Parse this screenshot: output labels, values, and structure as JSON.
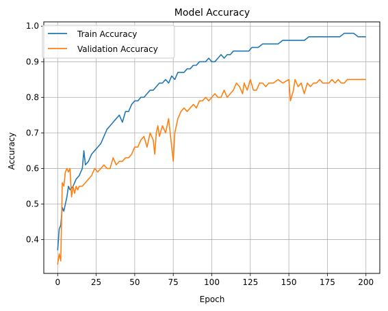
{
  "chart_data": {
    "type": "line",
    "title": "Model Accuracy",
    "xlabel": "Epoch",
    "ylabel": "Accuracy",
    "xlim": [
      -9,
      209
    ],
    "ylim": [
      0.305,
      1.012
    ],
    "xticks": [
      0,
      25,
      50,
      75,
      100,
      125,
      150,
      175,
      200
    ],
    "yticks": [
      0.4,
      0.5,
      0.6,
      0.7,
      0.8,
      0.9,
      1.0
    ],
    "ytick_labels": [
      "0.4",
      "0.5",
      "0.6",
      "0.7",
      "0.8",
      "0.9",
      "1.0"
    ],
    "grid": true,
    "legend_position": "top-left",
    "series": [
      {
        "name": "Train Accuracy",
        "color": "#1f77b4",
        "x": [
          0,
          1,
          2,
          3,
          4,
          5,
          6,
          7,
          8,
          10,
          12,
          14,
          16,
          17,
          18,
          20,
          22,
          24,
          26,
          28,
          30,
          32,
          34,
          36,
          38,
          40,
          42,
          44,
          46,
          48,
          50,
          52,
          54,
          56,
          58,
          60,
          62,
          64,
          66,
          68,
          70,
          72,
          74,
          76,
          78,
          80,
          82,
          84,
          86,
          88,
          90,
          92,
          94,
          96,
          98,
          100,
          102,
          104,
          106,
          108,
          110,
          112,
          114,
          116,
          118,
          120,
          122,
          124,
          126,
          128,
          130,
          133,
          136,
          140,
          143,
          146,
          150,
          153,
          156,
          160,
          163,
          166,
          170,
          173,
          176,
          180,
          183,
          186,
          189,
          192,
          195,
          198,
          200
        ],
        "values": [
          0.37,
          0.43,
          0.44,
          0.49,
          0.48,
          0.5,
          0.52,
          0.55,
          0.54,
          0.55,
          0.57,
          0.58,
          0.6,
          0.65,
          0.61,
          0.62,
          0.64,
          0.65,
          0.66,
          0.67,
          0.69,
          0.71,
          0.72,
          0.73,
          0.74,
          0.75,
          0.73,
          0.76,
          0.76,
          0.78,
          0.79,
          0.79,
          0.8,
          0.8,
          0.81,
          0.82,
          0.82,
          0.83,
          0.84,
          0.84,
          0.85,
          0.84,
          0.86,
          0.85,
          0.87,
          0.87,
          0.87,
          0.88,
          0.88,
          0.89,
          0.89,
          0.9,
          0.9,
          0.9,
          0.91,
          0.9,
          0.9,
          0.91,
          0.92,
          0.91,
          0.92,
          0.92,
          0.93,
          0.93,
          0.93,
          0.93,
          0.93,
          0.93,
          0.94,
          0.94,
          0.94,
          0.95,
          0.95,
          0.95,
          0.95,
          0.96,
          0.96,
          0.96,
          0.96,
          0.96,
          0.97,
          0.97,
          0.97,
          0.97,
          0.97,
          0.97,
          0.97,
          0.98,
          0.98,
          0.98,
          0.97,
          0.97,
          0.97
        ]
      },
      {
        "name": "Validation Accuracy",
        "color": "#ff7f0e",
        "x": [
          0,
          1,
          2,
          3,
          4,
          5,
          6,
          7,
          8,
          9,
          10,
          11,
          12,
          13,
          14,
          16,
          18,
          20,
          22,
          24,
          26,
          28,
          30,
          32,
          34,
          36,
          38,
          40,
          42,
          44,
          46,
          48,
          50,
          52,
          54,
          56,
          58,
          60,
          62,
          63,
          64,
          65,
          66,
          68,
          70,
          72,
          74,
          75,
          76,
          78,
          80,
          82,
          84,
          86,
          88,
          90,
          92,
          94,
          96,
          98,
          100,
          102,
          104,
          106,
          108,
          110,
          112,
          114,
          116,
          118,
          120,
          121,
          123,
          125,
          127,
          129,
          131,
          133,
          135,
          137,
          140,
          143,
          146,
          150,
          151,
          153,
          154,
          156,
          158,
          160,
          162,
          164,
          166,
          168,
          170,
          172,
          174,
          176,
          178,
          180,
          182,
          184,
          186,
          188,
          190,
          192,
          194,
          196,
          198,
          200
        ],
        "values": [
          0.33,
          0.36,
          0.34,
          0.56,
          0.55,
          0.59,
          0.6,
          0.59,
          0.6,
          0.52,
          0.55,
          0.53,
          0.55,
          0.54,
          0.55,
          0.55,
          0.56,
          0.57,
          0.58,
          0.6,
          0.59,
          0.6,
          0.61,
          0.6,
          0.6,
          0.63,
          0.61,
          0.62,
          0.62,
          0.63,
          0.63,
          0.64,
          0.66,
          0.66,
          0.68,
          0.69,
          0.66,
          0.7,
          0.68,
          0.64,
          0.7,
          0.72,
          0.69,
          0.72,
          0.7,
          0.74,
          0.66,
          0.62,
          0.7,
          0.74,
          0.76,
          0.77,
          0.76,
          0.77,
          0.78,
          0.77,
          0.79,
          0.79,
          0.8,
          0.79,
          0.8,
          0.81,
          0.8,
          0.8,
          0.82,
          0.8,
          0.81,
          0.82,
          0.84,
          0.83,
          0.81,
          0.84,
          0.82,
          0.85,
          0.82,
          0.82,
          0.84,
          0.84,
          0.83,
          0.84,
          0.84,
          0.85,
          0.84,
          0.85,
          0.79,
          0.82,
          0.85,
          0.83,
          0.84,
          0.81,
          0.84,
          0.83,
          0.84,
          0.84,
          0.85,
          0.84,
          0.84,
          0.84,
          0.85,
          0.84,
          0.85,
          0.84,
          0.84,
          0.85,
          0.85,
          0.85,
          0.85,
          0.85,
          0.85,
          0.85
        ]
      }
    ]
  }
}
